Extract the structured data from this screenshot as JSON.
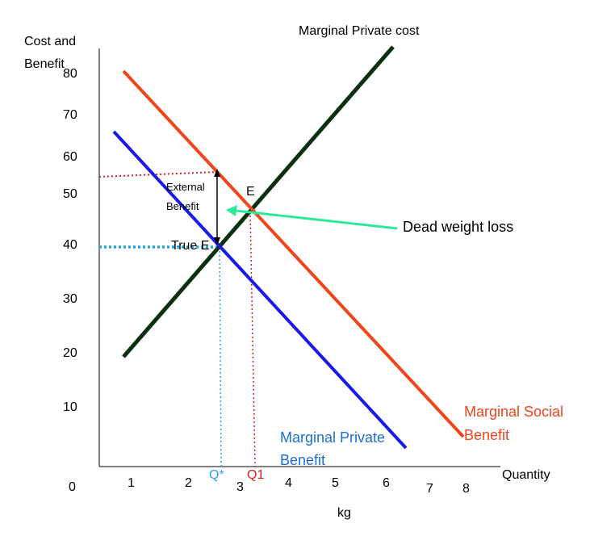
{
  "chart_data": {
    "type": "line",
    "ylabel": "Cost and Benefit",
    "xlabel": "Quantity",
    "x_unit": "kg",
    "x_ticks": [
      "0",
      "1",
      "2",
      "3",
      "4",
      "5",
      "6",
      "7",
      "8"
    ],
    "y_ticks": [
      "10",
      "20",
      "30",
      "40",
      "50",
      "60",
      "70",
      "80"
    ],
    "series": [
      {
        "name": "Marginal Private  cost",
        "color": "#0b3010",
        "points": [
          [
            0.5,
            19.5
          ],
          [
            5.7,
            83
          ]
        ]
      },
      {
        "name": "Marginal Social Benefit",
        "color": "#f0441a",
        "points": [
          [
            0.5,
            81
          ],
          [
            7.8,
            6
          ]
        ]
      },
      {
        "name": "Marginal Private Benefit",
        "color": "#1a1ae6",
        "points": [
          [
            0.3,
            66
          ],
          [
            6.8,
            3.5
          ]
        ]
      }
    ],
    "annotations": {
      "equilibrium": "E",
      "true_equilibrium": "True E",
      "external_benefit": [
        "External",
        "Benefit"
      ],
      "dead_weight_loss": "Dead weight loss",
      "q_star": "Q*",
      "q1": "Q1"
    }
  },
  "colors": {
    "mpc": "#0b3010",
    "msb": "#f0441a",
    "mpb": "#1a1ae6",
    "arrow": "#2ee89a",
    "q_star": "#22a6e0",
    "q1": "#d62020"
  }
}
